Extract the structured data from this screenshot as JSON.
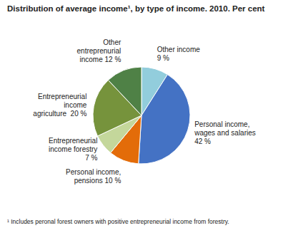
{
  "chart_data": {
    "type": "pie",
    "title": "Distribution of average income¹, by type of income. 2010. Per cent",
    "annotations": [
      "¹ Includes peronal forest owners with positive entrepreneurial income from forestry."
    ],
    "categories": [
      "Other income\n9 %",
      "Personal income,\nwages and salaries\n42 %",
      "Personal income,\npensions 10 %",
      "Entrepreneurial\nincome forestry\n7 %",
      "Entrepreneurial\nincome\nagriculture  20 %",
      "Other\nentreprenurial\nincome 12 %"
    ],
    "values": [
      9,
      42,
      10,
      7,
      20,
      12
    ],
    "colors": [
      "#92CDDC",
      "#4472C4",
      "#E36C09",
      "#C4D79B",
      "#76933C",
      "#4F8146"
    ]
  }
}
